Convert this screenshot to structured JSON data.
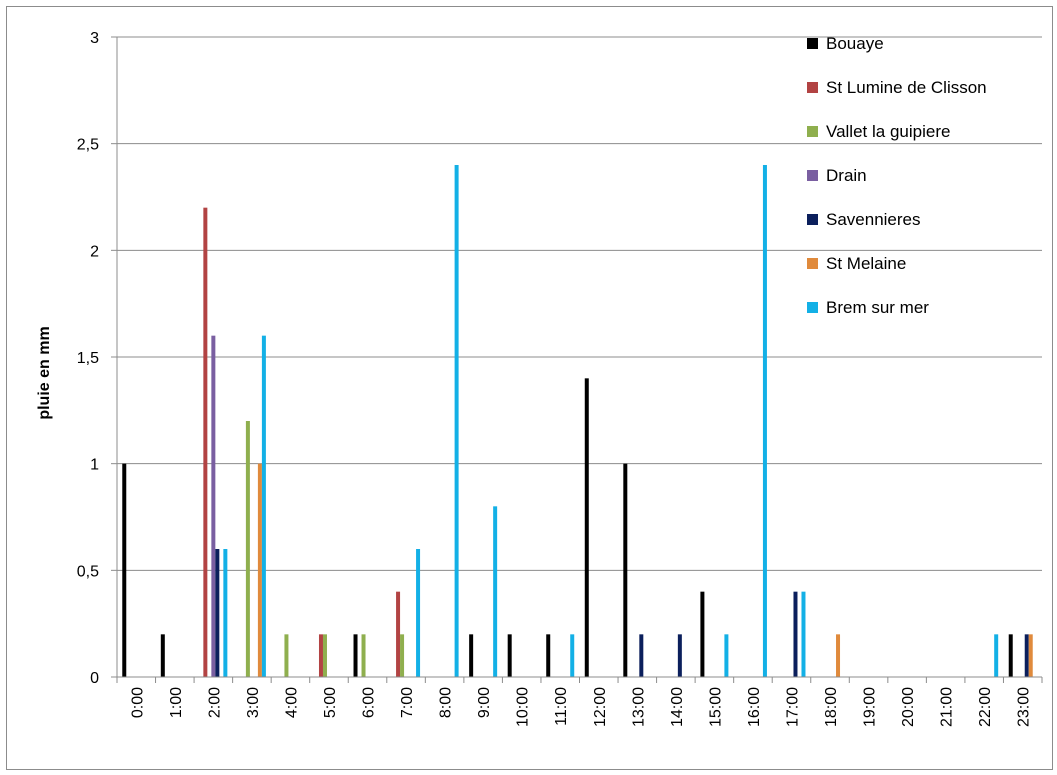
{
  "chart_data": {
    "type": "bar",
    "title": "",
    "xlabel": "",
    "ylabel": "pluie en mm",
    "ylim": [
      0,
      3
    ],
    "yticks": [
      "0",
      "0,5",
      "1",
      "1,5",
      "2",
      "2,5",
      "3"
    ],
    "ytick_values": [
      0,
      0.5,
      1,
      1.5,
      2,
      2.5,
      3
    ],
    "grid": true,
    "legend_position": "top-right",
    "categories": [
      "0:00",
      "1:00",
      "2:00",
      "3:00",
      "4:00",
      "5:00",
      "6:00",
      "7:00",
      "8:00",
      "9:00",
      "10:00",
      "11:00",
      "12:00",
      "13:00",
      "14:00",
      "15:00",
      "16:00",
      "17:00",
      "18:00",
      "19:00",
      "20:00",
      "21:00",
      "22:00",
      "23:00"
    ],
    "series": [
      {
        "name": "Bouaye",
        "color": "#000000",
        "values": [
          1,
          0.2,
          0,
          0,
          0,
          0,
          0.2,
          0,
          0,
          0.2,
          0.2,
          0.2,
          1.4,
          1,
          0,
          0.4,
          0,
          0,
          0,
          0,
          0,
          0,
          0,
          0.2
        ]
      },
      {
        "name": "St Lumine de Clisson",
        "color": "#b24343",
        "values": [
          0,
          0,
          2.2,
          0,
          0,
          0.2,
          0,
          0.4,
          0,
          0,
          0,
          0,
          0,
          0,
          0,
          0,
          0,
          0,
          0,
          0,
          0,
          0,
          0,
          0
        ]
      },
      {
        "name": "Vallet la guipiere",
        "color": "#8faf4e",
        "values": [
          0,
          0,
          0,
          1.2,
          0.2,
          0.2,
          0.2,
          0.2,
          0,
          0,
          0,
          0,
          0,
          0,
          0,
          0,
          0,
          0,
          0,
          0,
          0,
          0,
          0,
          0
        ]
      },
      {
        "name": "Drain",
        "color": "#7a5fa1",
        "values": [
          0,
          0,
          1.6,
          0,
          0,
          0,
          0,
          0,
          0,
          0,
          0,
          0,
          0,
          0,
          0,
          0,
          0,
          0,
          0,
          0,
          0,
          0,
          0,
          0
        ]
      },
      {
        "name": "Savennieres",
        "color": "#0b1f5c",
        "values": [
          0,
          0,
          0.6,
          0,
          0,
          0,
          0,
          0,
          0,
          0,
          0,
          0,
          0,
          0.2,
          0.2,
          0,
          0,
          0.4,
          0,
          0,
          0,
          0,
          0,
          0.2
        ]
      },
      {
        "name": "St Melaine",
        "color": "#e08a3c",
        "values": [
          0,
          0,
          0,
          1,
          0,
          0,
          0,
          0,
          0,
          0,
          0,
          0,
          0,
          0,
          0,
          0,
          0,
          0,
          0.2,
          0,
          0,
          0,
          0,
          0.2
        ]
      },
      {
        "name": "Brem sur mer",
        "color": "#13b0e6",
        "values": [
          0,
          0,
          0.6,
          1.6,
          0,
          0,
          0,
          0.6,
          2.4,
          0.8,
          0,
          0.2,
          0,
          0,
          0,
          0.2,
          2.4,
          0.4,
          0,
          0,
          0,
          0,
          0.2,
          0
        ]
      }
    ]
  }
}
